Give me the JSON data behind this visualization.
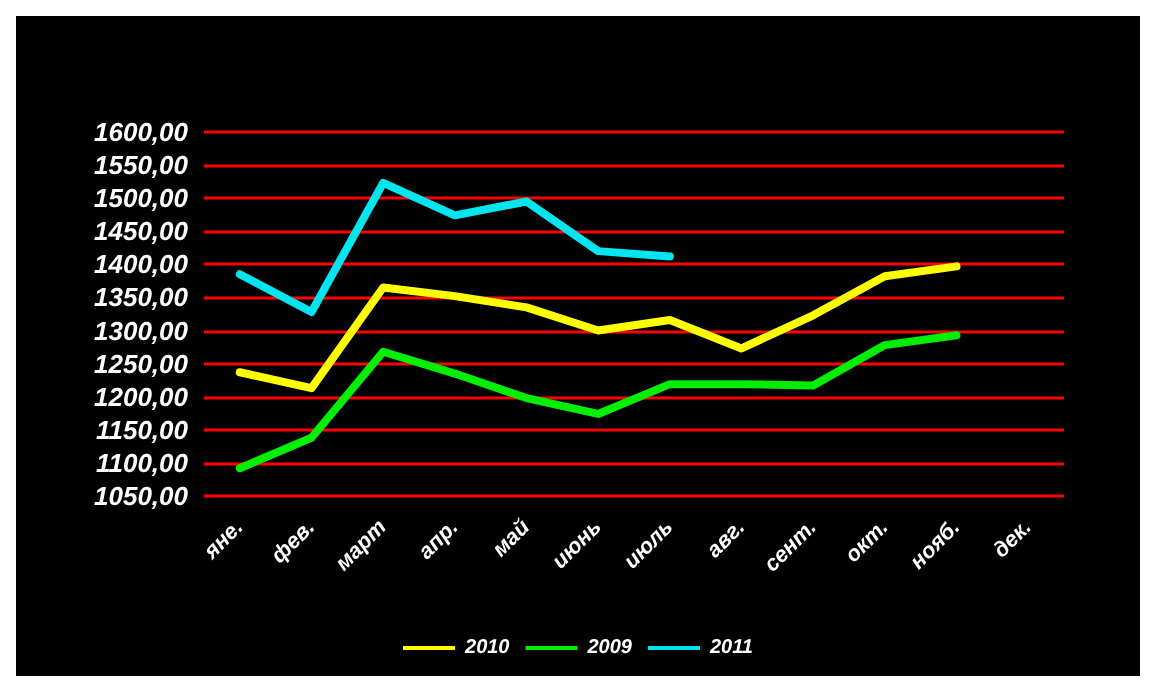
{
  "chart_data": {
    "type": "line",
    "categories": [
      "яне.",
      "фев.",
      "март",
      "апр.",
      "май",
      "июнь",
      "июль",
      "авг.",
      "сент.",
      "окт.",
      "нояб.",
      "дек."
    ],
    "series": [
      {
        "name": "2010",
        "color": "#ffff00",
        "values": [
          1237,
          1213,
          1365,
          1352,
          1335,
          1300,
          1316,
          1273,
          1323,
          1382,
          1397,
          null
        ]
      },
      {
        "name": "2009",
        "color": "#00ee00",
        "values": [
          1092,
          1138,
          1268,
          1235,
          1198,
          1174,
          1219,
          1219,
          1217,
          1278,
          1293,
          null
        ]
      },
      {
        "name": "2011",
        "color": "#00e5ee",
        "values": [
          1385,
          1328,
          1523,
          1474,
          1495,
          1420,
          1412,
          null,
          null,
          null,
          null,
          null
        ]
      }
    ],
    "ylim": [
      1050,
      1600
    ],
    "yticks": [
      {
        "value": 1050,
        "label": "1050,00"
      },
      {
        "value": 1100,
        "label": "1100,00"
      },
      {
        "value": 1150,
        "label": "1150,00"
      },
      {
        "value": 1200,
        "label": "1200,00"
      },
      {
        "value": 1250,
        "label": "1250,00"
      },
      {
        "value": 1300,
        "label": "1300,00"
      },
      {
        "value": 1350,
        "label": "1350,00"
      },
      {
        "value": 1400,
        "label": "1400,00"
      },
      {
        "value": 1450,
        "label": "1450,00"
      },
      {
        "value": 1500,
        "label": "1500,00"
      },
      {
        "value": 1550,
        "label": "1550,00"
      },
      {
        "value": 1600,
        "label": "1600,00"
      }
    ],
    "grid": "y",
    "legend": "bottom",
    "marker": "none",
    "line_style": "solid"
  }
}
